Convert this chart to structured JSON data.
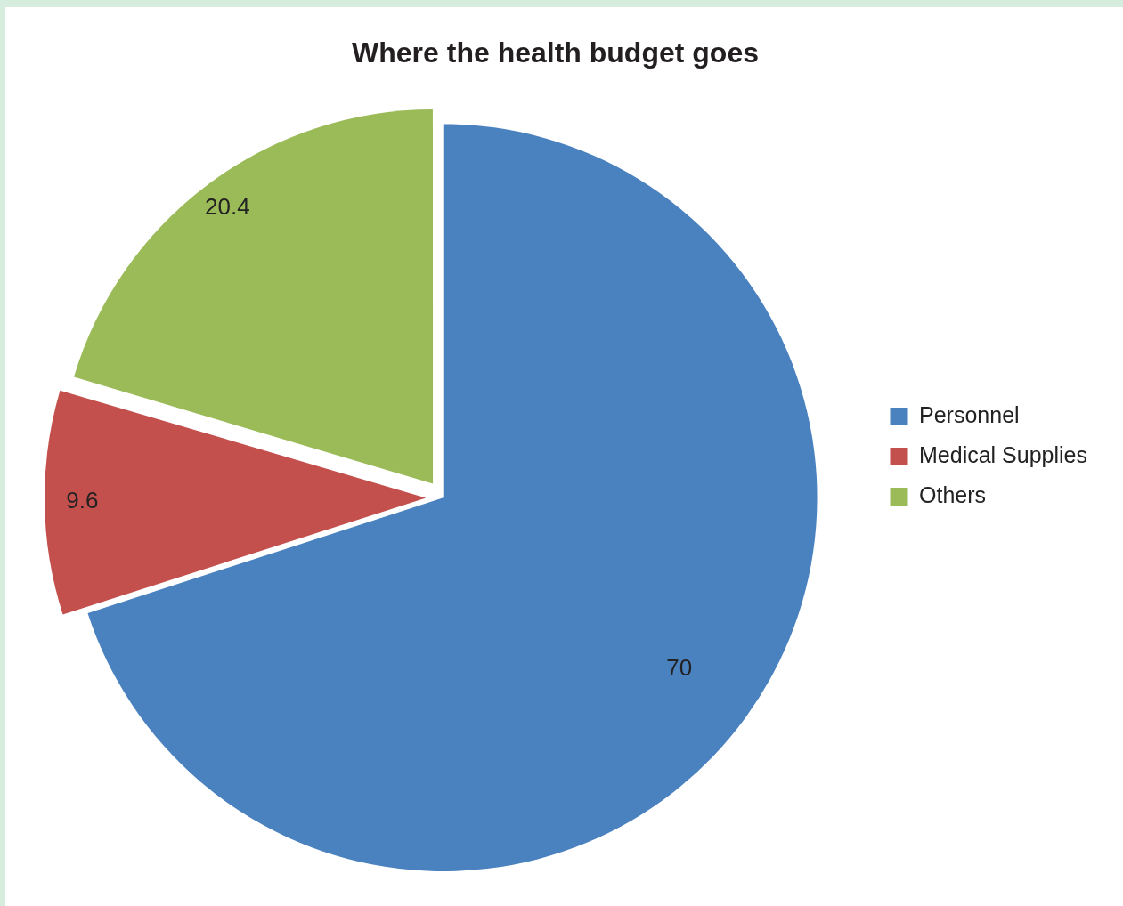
{
  "chart_data": {
    "type": "pie",
    "title": "Where the health budget goes",
    "categories": [
      "Personnel",
      "Medical Supplies",
      "Others"
    ],
    "values": [
      70,
      9.6,
      20.4
    ],
    "colors": [
      "#4a81bf",
      "#c4504d",
      "#9bbb59"
    ],
    "data_labels": true,
    "legend": "right"
  }
}
